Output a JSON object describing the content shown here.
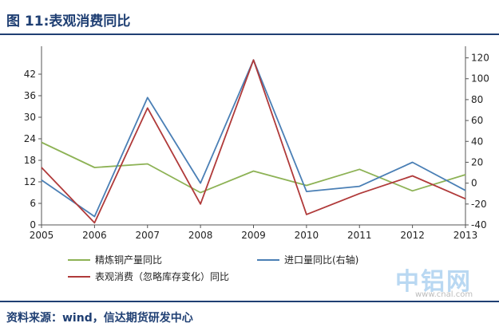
{
  "figure_title": "图 11:表观消费同比",
  "source": "资料来源：wind，信达期货研发中心",
  "watermark": {
    "main": "中铝网",
    "url": "www.cnal.com"
  },
  "colors": {
    "green": "#8db255",
    "blue": "#4a7fb5",
    "red": "#b03a3a",
    "title": "#1f3f73"
  },
  "chart_data": {
    "type": "line",
    "title": "",
    "categories": [
      "2005",
      "2006",
      "2007",
      "2008",
      "2009",
      "2010",
      "2011",
      "2012",
      "2013"
    ],
    "left_axis": {
      "ylim": [
        0,
        48
      ],
      "ticks": [
        "0",
        "6",
        "12",
        "18",
        "24",
        "30",
        "36",
        "42"
      ]
    },
    "right_axis": {
      "ylim": [
        -40,
        125
      ],
      "ticks": [
        "-40",
        "-20",
        "0",
        "20",
        "40",
        "60",
        "80",
        "100",
        "120"
      ]
    },
    "series": [
      {
        "name": "精炼铜产量同比",
        "axis": "left",
        "color": "#8db255",
        "values": [
          23,
          16,
          17,
          9,
          15,
          11,
          15.5,
          9.5,
          14
        ]
      },
      {
        "name": "进口量同比(右轴)",
        "axis": "right",
        "color": "#4a7fb5",
        "values": [
          3,
          -32,
          82,
          0,
          118,
          -8,
          -3,
          20,
          -7
        ]
      },
      {
        "name": "表观消费（忽略库存变化）同比",
        "axis": "right",
        "color": "#b03a3a",
        "values": [
          15,
          -38,
          72,
          -20,
          118,
          -30,
          -10,
          7,
          -15
        ]
      }
    ]
  }
}
